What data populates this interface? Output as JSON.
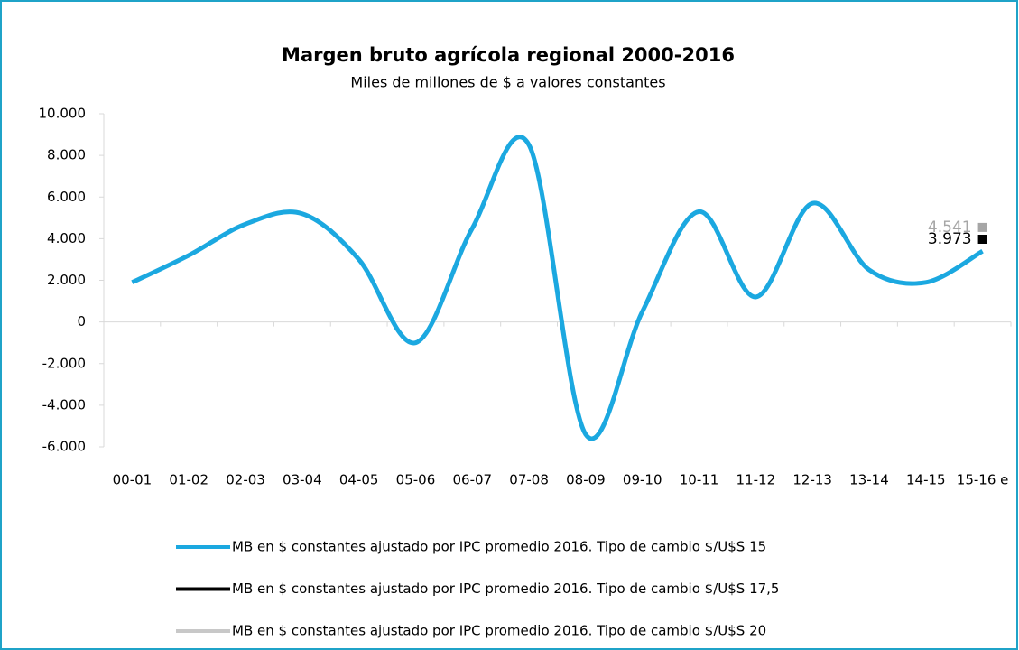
{
  "chart_data": {
    "type": "line",
    "title": "Margen bruto agrícola regional 2000-2016",
    "subtitle": "Miles de millones de $ a valores constantes",
    "categories": [
      "00-01",
      "01-02",
      "02-03",
      "03-04",
      "04-05",
      "05-06",
      "06-07",
      "07-08",
      "08-09",
      "09-10",
      "10-11",
      "11-12",
      "12-13",
      "13-14",
      "14-15",
      "15-16 e"
    ],
    "series": [
      {
        "name": "MB en $ constantes ajustado por IPC promedio 2016. Tipo de cambio $/U$S 15",
        "color": "#1ba8e0",
        "values": [
          1900,
          3200,
          4700,
          5200,
          3000,
          -1000,
          4500,
          8500,
          -5400,
          500,
          5300,
          1200,
          5700,
          2500,
          1900,
          3400
        ]
      },
      {
        "name": "MB en $ constantes ajustado por IPC promedio 2016. Tipo de cambio $/U$S 17,5",
        "color": "#000000",
        "values": [
          null,
          null,
          null,
          null,
          null,
          null,
          null,
          null,
          null,
          null,
          null,
          null,
          null,
          null,
          null,
          3973
        ],
        "value_labels": [
          null,
          null,
          null,
          null,
          null,
          null,
          null,
          null,
          null,
          null,
          null,
          null,
          null,
          null,
          null,
          "3.973"
        ]
      },
      {
        "name": "MB en $ constantes ajustado por IPC promedio 2016. Tipo de cambio $/U$S 20",
        "color": "#a6a6a6",
        "values": [
          null,
          null,
          null,
          null,
          null,
          null,
          null,
          null,
          null,
          null,
          null,
          null,
          null,
          null,
          null,
          4541
        ],
        "value_labels": [
          null,
          null,
          null,
          null,
          null,
          null,
          null,
          null,
          null,
          null,
          null,
          null,
          null,
          null,
          null,
          "4.541"
        ]
      }
    ],
    "ylim": [
      -6000,
      10000
    ],
    "yticks": [
      {
        "value": -6000,
        "label": "-6.000"
      },
      {
        "value": -4000,
        "label": "-4.000"
      },
      {
        "value": -2000,
        "label": "-2.000"
      },
      0,
      {
        "value": 2000,
        "label": "2.000"
      },
      {
        "value": 4000,
        "label": "4.000"
      },
      {
        "value": 6000,
        "label": "6.000"
      },
      {
        "value": 8000,
        "label": "8.000"
      },
      {
        "value": 10000,
        "label": "10.000"
      }
    ],
    "grid": false,
    "legend": "bottom"
  }
}
